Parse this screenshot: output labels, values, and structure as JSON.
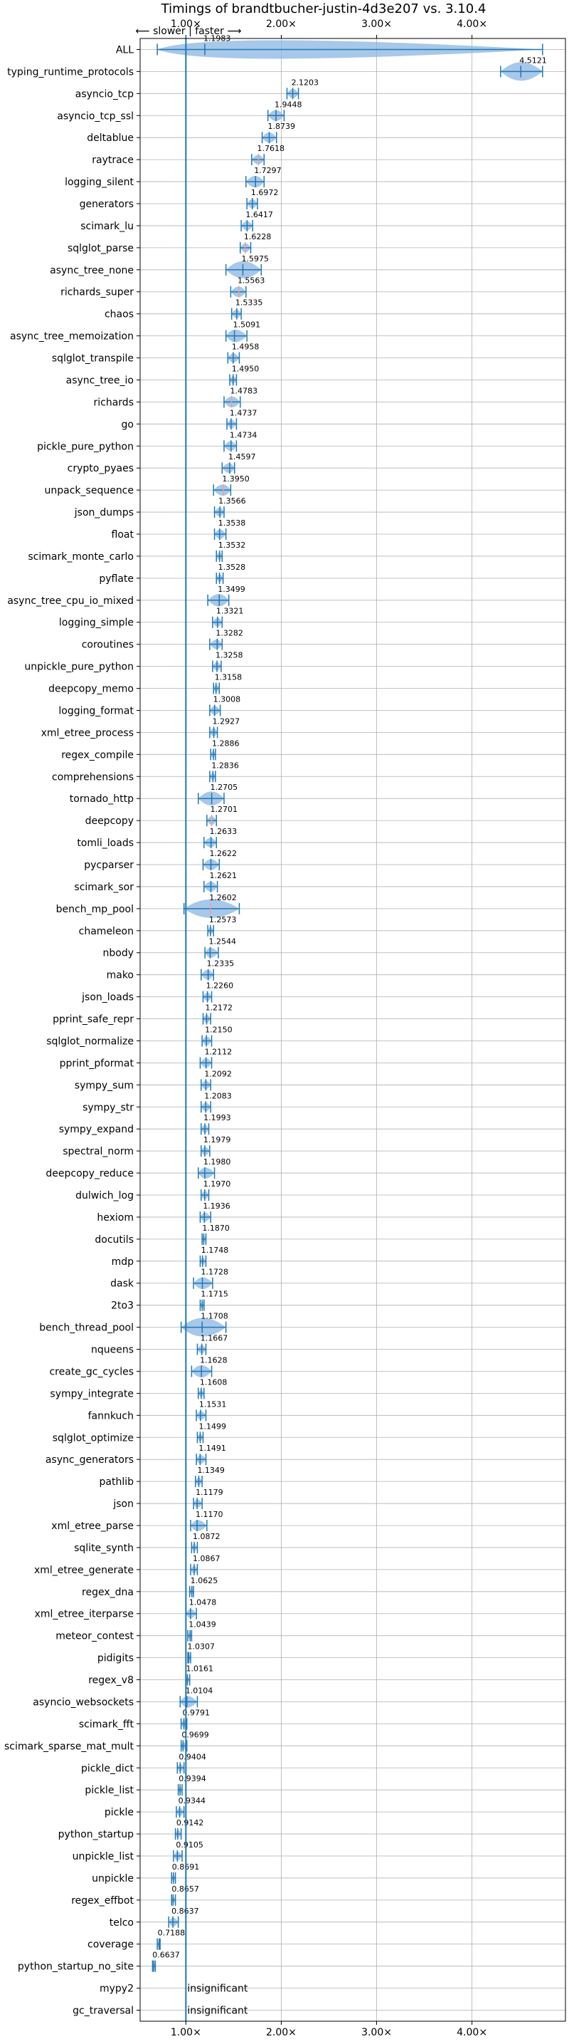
{
  "chart_data": {
    "type": "violin",
    "title": "Timings of brandtbucher-justin-4d3e207 vs. 3.10.4",
    "xlabel": "",
    "ylabel": "",
    "xlim": [
      0.52,
      4.98
    ],
    "xticks": [
      1.0,
      2.0,
      3.0,
      4.0
    ],
    "xtick_labels": [
      "1.00×",
      "2.00×",
      "3.00×",
      "4.00×"
    ],
    "direction_note": "⟵ slower  |  faster ⟶",
    "reference_line": 1.0,
    "grid": true,
    "colors": {
      "violin": "#8ab6e0",
      "line": "#1f77b4",
      "significant_mark": "#e8a0a0"
    },
    "insignificant_label": "insignificant",
    "categories": [
      "ALL",
      "typing_runtime_protocols",
      "asyncio_tcp",
      "asyncio_tcp_ssl",
      "deltablue",
      "raytrace",
      "logging_silent",
      "generators",
      "scimark_lu",
      "sqlglot_parse",
      "async_tree_none",
      "richards_super",
      "chaos",
      "async_tree_memoization",
      "sqlglot_transpile",
      "async_tree_io",
      "richards",
      "go",
      "pickle_pure_python",
      "crypto_pyaes",
      "unpack_sequence",
      "json_dumps",
      "float",
      "scimark_monte_carlo",
      "pyflate",
      "async_tree_cpu_io_mixed",
      "logging_simple",
      "coroutines",
      "unpickle_pure_python",
      "deepcopy_memo",
      "logging_format",
      "xml_etree_process",
      "regex_compile",
      "comprehensions",
      "tornado_http",
      "deepcopy",
      "tomli_loads",
      "pycparser",
      "scimark_sor",
      "bench_mp_pool",
      "chameleon",
      "nbody",
      "mako",
      "json_loads",
      "pprint_safe_repr",
      "sqlglot_normalize",
      "pprint_pformat",
      "sympy_sum",
      "sympy_str",
      "sympy_expand",
      "spectral_norm",
      "deepcopy_reduce",
      "dulwich_log",
      "hexiom",
      "docutils",
      "mdp",
      "dask",
      "2to3",
      "bench_thread_pool",
      "nqueens",
      "create_gc_cycles",
      "sympy_integrate",
      "fannkuch",
      "sqlglot_optimize",
      "async_generators",
      "pathlib",
      "json",
      "xml_etree_parse",
      "sqlite_synth",
      "xml_etree_generate",
      "regex_dna",
      "xml_etree_iterparse",
      "meteor_contest",
      "pidigits",
      "regex_v8",
      "asyncio_websockets",
      "scimark_fft",
      "scimark_sparse_mat_mult",
      "pickle_dict",
      "pickle_list",
      "pickle",
      "python_startup",
      "unpickle_list",
      "unpickle",
      "regex_effbot",
      "telco",
      "coverage",
      "python_startup_no_site",
      "mypy2",
      "gc_traversal"
    ],
    "values": [
      1.1983,
      4.5121,
      2.1203,
      1.9448,
      1.8739,
      1.7618,
      1.7297,
      1.6972,
      1.6417,
      1.6228,
      1.5975,
      1.5563,
      1.5335,
      1.5091,
      1.4958,
      1.495,
      1.4783,
      1.4737,
      1.4734,
      1.4597,
      1.395,
      1.3566,
      1.3538,
      1.3532,
      1.3528,
      1.3499,
      1.3321,
      1.3282,
      1.3258,
      1.3158,
      1.3008,
      1.2927,
      1.2886,
      1.2836,
      1.2705,
      1.2701,
      1.2633,
      1.2622,
      1.2621,
      1.2602,
      1.2573,
      1.2544,
      1.2335,
      1.226,
      1.2172,
      1.215,
      1.2112,
      1.2092,
      1.2083,
      1.1993,
      1.1979,
      1.198,
      1.197,
      1.1936,
      1.187,
      1.1748,
      1.1728,
      1.1715,
      1.1708,
      1.1667,
      1.1628,
      1.1608,
      1.1531,
      1.1499,
      1.1491,
      1.1349,
      1.1179,
      1.117,
      1.0872,
      1.0867,
      1.0625,
      1.0478,
      1.0439,
      1.0307,
      1.0161,
      1.0104,
      0.9791,
      0.9699,
      0.9404,
      0.9394,
      0.9344,
      0.9142,
      0.9105,
      0.8691,
      0.8657,
      0.8637,
      0.7188,
      0.6637,
      null,
      null
    ],
    "value_labels": [
      "1.1983",
      "4.5121",
      "2.1203",
      "1.9448",
      "1.8739",
      "1.7618",
      "1.7297",
      "1.6972",
      "1.6417",
      "1.6228",
      "1.5975",
      "1.5563",
      "1.5335",
      "1.5091",
      "1.4958",
      "1.4950",
      "1.4783",
      "1.4737",
      "1.4734",
      "1.4597",
      "1.3950",
      "1.3566",
      "1.3538",
      "1.3532",
      "1.3528",
      "1.3499",
      "1.3321",
      "1.3282",
      "1.3258",
      "1.3158",
      "1.3008",
      "1.2927",
      "1.2886",
      "1.2836",
      "1.2705",
      "1.2701",
      "1.2633",
      "1.2622",
      "1.2621",
      "1.2602",
      "1.2573",
      "1.2544",
      "1.2335",
      "1.2260",
      "1.2172",
      "1.2150",
      "1.2112",
      "1.2092",
      "1.2083",
      "1.1993",
      "1.1979",
      "1.1980",
      "1.1970",
      "1.1936",
      "1.1870",
      "1.1748",
      "1.1728",
      "1.1715",
      "1.1708",
      "1.1667",
      "1.1628",
      "1.1608",
      "1.1531",
      "1.1499",
      "1.1491",
      "1.1349",
      "1.1179",
      "1.1170",
      "1.0872",
      "1.0867",
      "1.0625",
      "1.0478",
      "1.0439",
      "1.0307",
      "1.0161",
      "1.0104",
      "0.9791",
      "0.9699",
      "0.9404",
      "0.9394",
      "0.9344",
      "0.9142",
      "0.9105",
      "0.8691",
      "0.8657",
      "0.8637",
      "0.7188",
      "0.6637",
      "",
      ""
    ],
    "spread_low": [
      0.7,
      4.3,
      2.06,
      1.86,
      1.8,
      1.69,
      1.63,
      1.64,
      1.58,
      1.57,
      1.42,
      1.47,
      1.48,
      1.42,
      1.44,
      1.46,
      1.4,
      1.43,
      1.4,
      1.38,
      1.29,
      1.3,
      1.3,
      1.32,
      1.32,
      1.23,
      1.28,
      1.25,
      1.28,
      1.29,
      1.25,
      1.25,
      1.26,
      1.25,
      1.13,
      1.22,
      1.19,
      1.18,
      1.19,
      0.98,
      1.23,
      1.2,
      1.16,
      1.18,
      1.18,
      1.17,
      1.15,
      1.16,
      1.16,
      1.16,
      1.16,
      1.13,
      1.16,
      1.15,
      1.17,
      1.15,
      1.08,
      1.15,
      0.95,
      1.12,
      1.06,
      1.13,
      1.11,
      1.12,
      1.11,
      1.1,
      1.08,
      1.05,
      1.06,
      1.05,
      1.04,
      1.0,
      1.02,
      1.02,
      1.0,
      0.94,
      0.95,
      0.95,
      0.91,
      0.92,
      0.9,
      0.89,
      0.87,
      0.85,
      0.85,
      0.82,
      0.7,
      0.65,
      null,
      null
    ],
    "spread_high": [
      4.74,
      4.74,
      2.18,
      2.03,
      1.95,
      1.82,
      1.82,
      1.75,
      1.7,
      1.68,
      1.79,
      1.63,
      1.58,
      1.64,
      1.56,
      1.53,
      1.57,
      1.53,
      1.53,
      1.51,
      1.47,
      1.4,
      1.42,
      1.38,
      1.39,
      1.45,
      1.38,
      1.38,
      1.37,
      1.35,
      1.36,
      1.33,
      1.31,
      1.31,
      1.4,
      1.32,
      1.32,
      1.35,
      1.33,
      1.56,
      1.29,
      1.34,
      1.29,
      1.27,
      1.26,
      1.27,
      1.27,
      1.26,
      1.26,
      1.24,
      1.25,
      1.3,
      1.24,
      1.26,
      1.21,
      1.21,
      1.28,
      1.19,
      1.42,
      1.21,
      1.27,
      1.19,
      1.21,
      1.18,
      1.21,
      1.17,
      1.17,
      1.22,
      1.12,
      1.12,
      1.08,
      1.11,
      1.06,
      1.05,
      1.04,
      1.12,
      1.01,
      1.01,
      0.98,
      0.96,
      0.98,
      0.95,
      0.96,
      0.89,
      0.89,
      0.92,
      0.73,
      0.68,
      null,
      null
    ],
    "significant_highlight": [
      "raytrace",
      "sqlglot_parse",
      "richards_super",
      "richards",
      "unpack_sequence",
      "deepcopy",
      "bench_mp_pool"
    ],
    "insignificant": [
      "mypy2",
      "gc_traversal"
    ]
  }
}
